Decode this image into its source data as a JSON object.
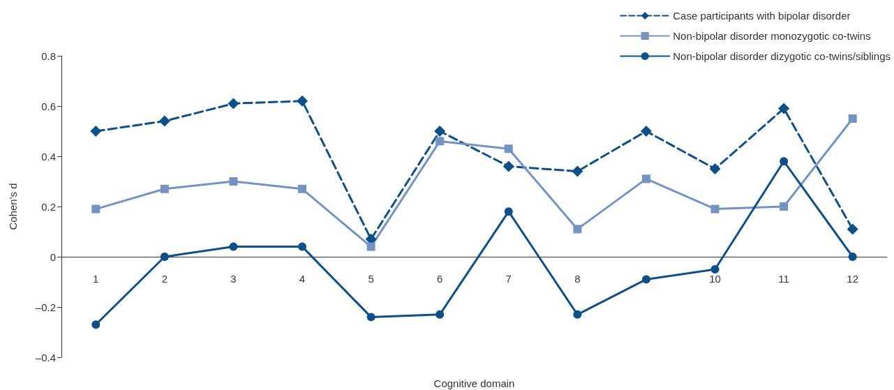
{
  "chart_data": {
    "type": "line",
    "xlabel": "Cognitive domain",
    "ylabel": "Cohen's d",
    "categories": [
      "1",
      "2",
      "3",
      "4",
      "5",
      "6",
      "7",
      "8",
      null,
      "10",
      "11",
      "12"
    ],
    "series": [
      {
        "name": "Case participants with bipolar disorder",
        "color": "#0f4f88",
        "marker": "diamond",
        "line_style": "dashed",
        "values": [
          0.5,
          0.54,
          0.61,
          0.62,
          0.07,
          0.5,
          0.36,
          0.34,
          0.5,
          0.35,
          0.59,
          0.11
        ]
      },
      {
        "name": "Non-bipolar disorder monozygotic co-twins",
        "color": "#7493c2",
        "marker": "square",
        "line_style": "solid",
        "values": [
          0.19,
          0.27,
          0.3,
          0.27,
          0.04,
          0.46,
          0.43,
          0.11,
          0.31,
          0.19,
          0.2,
          0.55
        ]
      },
      {
        "name": "Non-bipolar disorder dizygotic co-twins/siblings",
        "color": "#0f4f88",
        "marker": "circle",
        "line_style": "solid",
        "values": [
          -0.27,
          0.0,
          0.04,
          0.04,
          -0.24,
          -0.23,
          0.18,
          -0.23,
          -0.09,
          -0.05,
          0.38,
          0.0
        ]
      }
    ],
    "ylim": [
      -0.4,
      0.8
    ],
    "yticks": [
      {
        "value": -0.4,
        "label": "–0.4"
      },
      {
        "value": -0.2,
        "label": "–0.2"
      },
      0,
      0.2,
      0.4,
      0.6,
      0.8
    ],
    "grid": false,
    "legend": "top right"
  }
}
